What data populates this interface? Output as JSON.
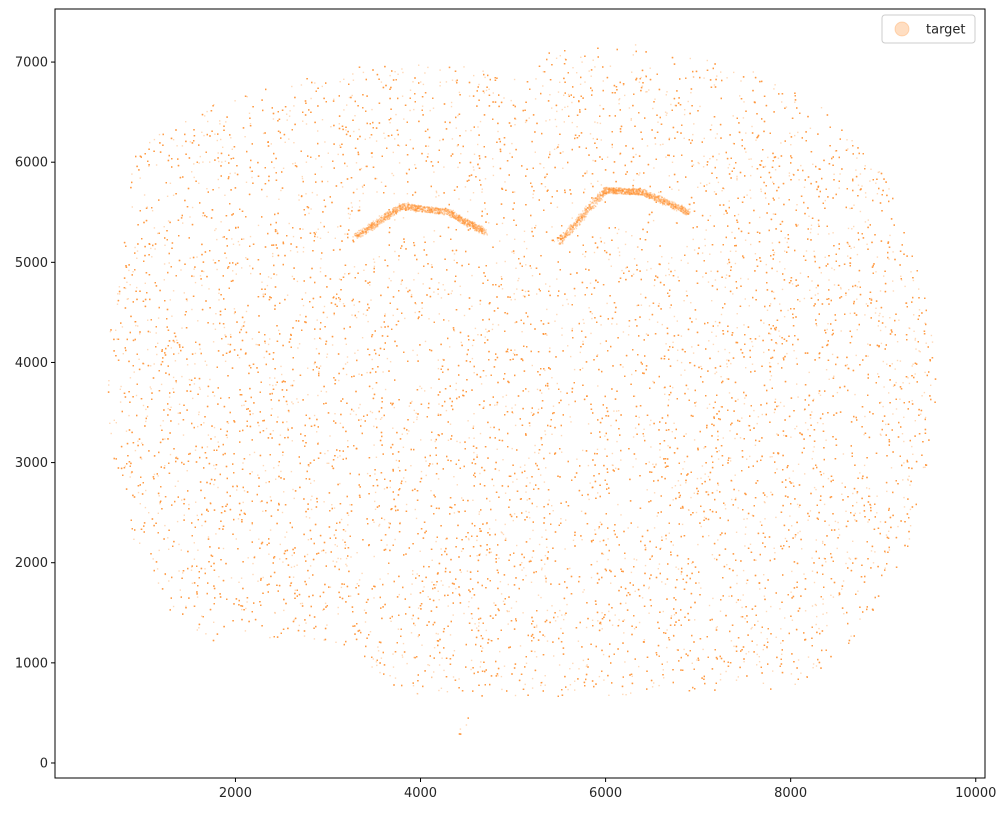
{
  "chart_data": {
    "type": "scatter",
    "title": "",
    "xlabel": "",
    "ylabel": "",
    "xlim": [
      50,
      10100
    ],
    "ylim": [
      -150,
      7530
    ],
    "xticks": [
      2000,
      4000,
      6000,
      8000,
      10000
    ],
    "yticks": [
      0,
      1000,
      2000,
      3000,
      4000,
      5000,
      6000,
      7000
    ],
    "grid": false,
    "legend": {
      "placement": "top-right",
      "entries": [
        "target"
      ]
    },
    "series": [
      {
        "name": "target",
        "color": "#ff9234",
        "marker_alpha": 0.35,
        "point_count_approx": 60000,
        "shape": "coronal mouse brain section",
        "extent": {
          "x": [
            600,
            9650
          ],
          "y": [
            220,
            7200
          ]
        },
        "regions": {
          "outline_top_left_to_right": [
            [
              900,
              6150
            ],
            [
              1800,
              6600
            ],
            [
              3000,
              6900
            ],
            [
              3700,
              7000
            ],
            [
              4700,
              6950
            ],
            [
              5100,
              6800
            ],
            [
              5400,
              7100
            ],
            [
              6300,
              7180
            ],
            [
              7500,
              6950
            ],
            [
              8300,
              6600
            ],
            [
              9000,
              5900
            ],
            [
              9400,
              4900
            ],
            [
              9600,
              3900
            ],
            [
              9500,
              2900
            ],
            [
              9250,
              2100
            ],
            [
              8700,
              1200
            ],
            [
              8000,
              700
            ],
            [
              7300,
              720
            ],
            [
              6600,
              700
            ],
            [
              5800,
              650
            ],
            [
              4500,
              650
            ],
            [
              3800,
              700
            ],
            [
              3200,
              1150
            ],
            [
              2700,
              1250
            ],
            [
              1800,
              1200
            ],
            [
              1300,
              1500
            ],
            [
              900,
              2200
            ],
            [
              650,
              3200
            ],
            [
              600,
              4200
            ],
            [
              800,
              5200
            ]
          ],
          "olfactory_tip": [
            [
              4300,
              450
            ],
            [
              4600,
              450
            ],
            [
              4450,
              200
            ]
          ],
          "hippocampus_left_arc": [
            [
              3300,
              5250
            ],
            [
              3800,
              5560
            ],
            [
              4300,
              5500
            ],
            [
              4700,
              5300
            ]
          ],
          "hippocampus_right_arc": [
            [
              5500,
              5200
            ],
            [
              6000,
              5720
            ],
            [
              6400,
              5700
            ],
            [
              6900,
              5500
            ]
          ],
          "midline_gap_x": 5080
        }
      }
    ]
  }
}
